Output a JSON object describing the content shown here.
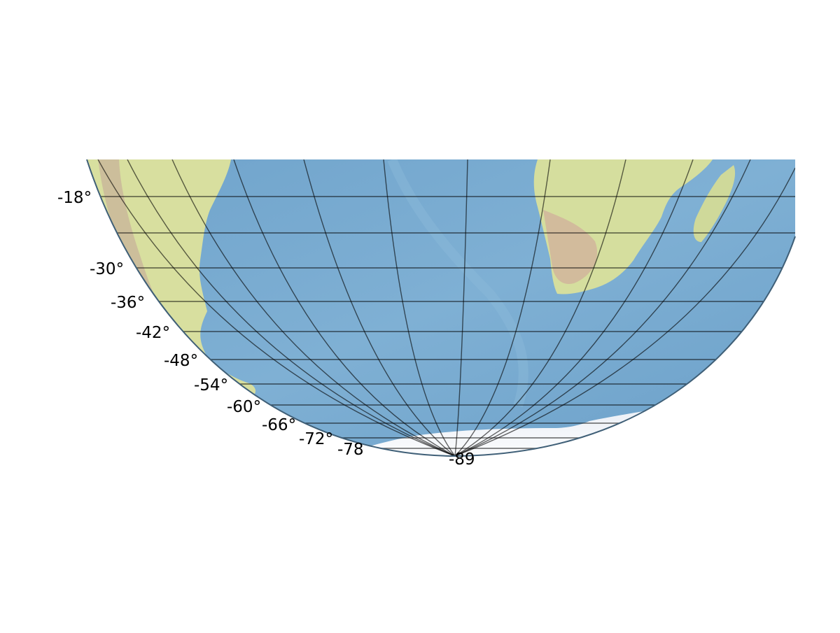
{
  "map": {
    "projection": "orthographic",
    "view": "southern hemisphere cap, cropped at top",
    "colors": {
      "background": "#ffffff",
      "ocean": "#78a9cf",
      "ocean_dark": "#5f93bd",
      "land": "#d9dfa7",
      "land_dry": "#cdb796",
      "ice": "#f1f4f9",
      "graticule": "#000000"
    },
    "lat_tick_labels": [
      "-18°",
      "-30°",
      "-36°",
      "-42°",
      "-48°",
      "-54°",
      "-60°",
      "-66°",
      "-72°",
      "-78",
      "-89"
    ],
    "features": [
      {
        "name": "South America",
        "type": "continent"
      },
      {
        "name": "Africa",
        "type": "continent"
      },
      {
        "name": "Madagascar",
        "type": "island"
      },
      {
        "name": "Antarctica",
        "type": "ice-sheet"
      }
    ]
  }
}
